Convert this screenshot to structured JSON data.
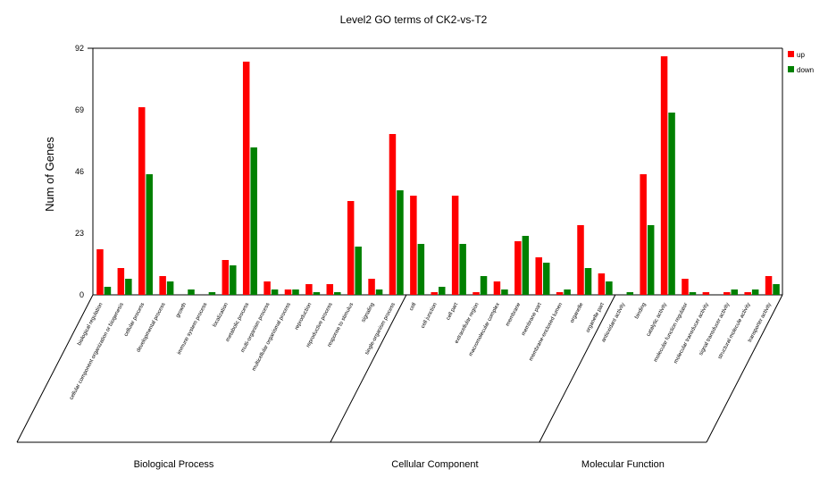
{
  "chart_data": {
    "type": "bar",
    "title": "Level2 GO terms of CK2-vs-T2",
    "ylabel": "Num of Genes",
    "xlabel": "",
    "ylim": [
      0,
      92
    ],
    "yticks": [
      0,
      23,
      46,
      69,
      92
    ],
    "grid": false,
    "legend_position": "top-right",
    "colors": {
      "up": "#ff0000",
      "down": "#008000"
    },
    "categories": [
      "biological regulation",
      "cellular component organization or biogenesis",
      "cellular process",
      "developmental process",
      "growth",
      "immune system process",
      "localization",
      "metabolic process",
      "multi-organism process",
      "multicellular organismal process",
      "reproduction",
      "reproductive process",
      "response to stimulus",
      "signaling",
      "single-organism process",
      "cell",
      "cell junction",
      "cell part",
      "extracellular region",
      "macromolecular complex",
      "membrane",
      "membrane part",
      "membrane-enclosed lumen",
      "organelle",
      "organelle part",
      "antioxidant activity",
      "binding",
      "catalytic activity",
      "molecular function regulator",
      "molecular transducer activity",
      "signal transducer activity",
      "structural molecule activity",
      "transporter activity"
    ],
    "series": [
      {
        "name": "up",
        "values": [
          17,
          10,
          70,
          7,
          0,
          0,
          13,
          87,
          5,
          2,
          4,
          4,
          35,
          6,
          60,
          37,
          1,
          37,
          1,
          5,
          20,
          14,
          1,
          26,
          8,
          0,
          45,
          89,
          6,
          1,
          1,
          1,
          7
        ]
      },
      {
        "name": "down",
        "values": [
          3,
          6,
          45,
          5,
          2,
          1,
          11,
          55,
          2,
          2,
          1,
          1,
          18,
          2,
          39,
          19,
          3,
          19,
          7,
          2,
          22,
          12,
          2,
          10,
          5,
          1,
          26,
          68,
          1,
          0,
          2,
          2,
          4
        ]
      }
    ],
    "groups": [
      {
        "name": "Biological Process",
        "start": 0,
        "end": 14
      },
      {
        "name": "Cellular Component",
        "start": 15,
        "end": 24
      },
      {
        "name": "Molecular Function",
        "start": 25,
        "end": 32
      }
    ]
  }
}
